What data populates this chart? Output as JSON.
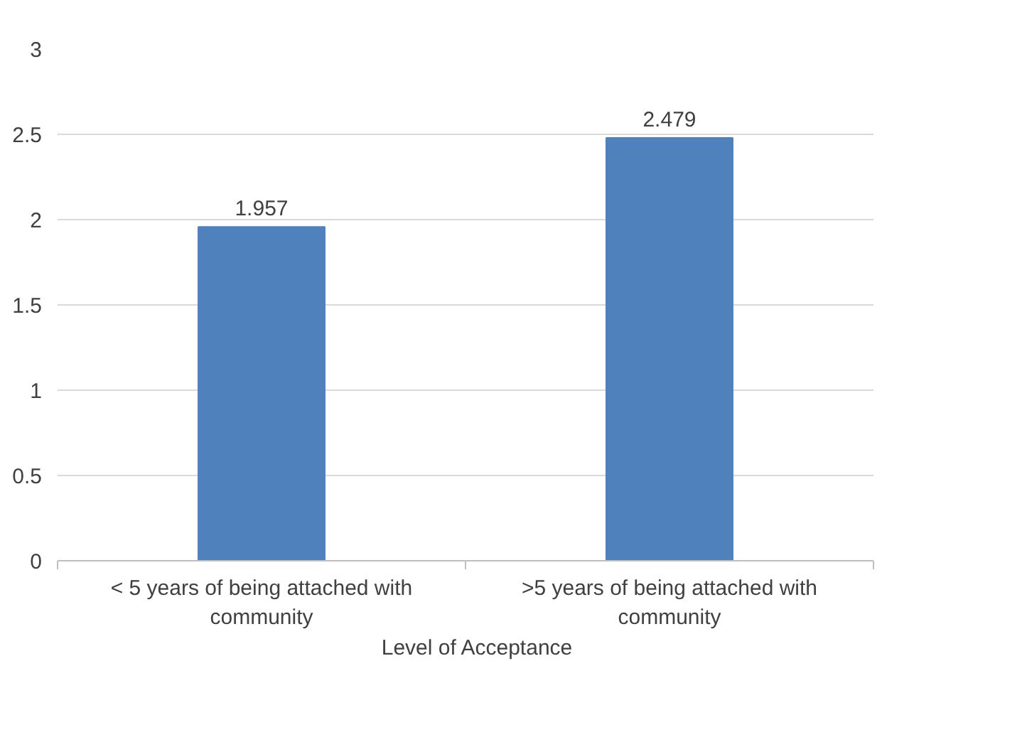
{
  "chart_data": {
    "type": "bar",
    "categories": [
      "< 5 years of being attached with community",
      ">5 years of being attached with community"
    ],
    "series": [
      {
        "name": "Level of Acceptance",
        "color": "#4f81bd",
        "values": [
          1.957,
          2.479
        ]
      }
    ],
    "ylim": [
      0,
      3
    ],
    "yticks": [
      0,
      0.5,
      1,
      1.5,
      2,
      2.5,
      3
    ],
    "grid": "y",
    "legend": "bottom",
    "data_labels": true
  }
}
